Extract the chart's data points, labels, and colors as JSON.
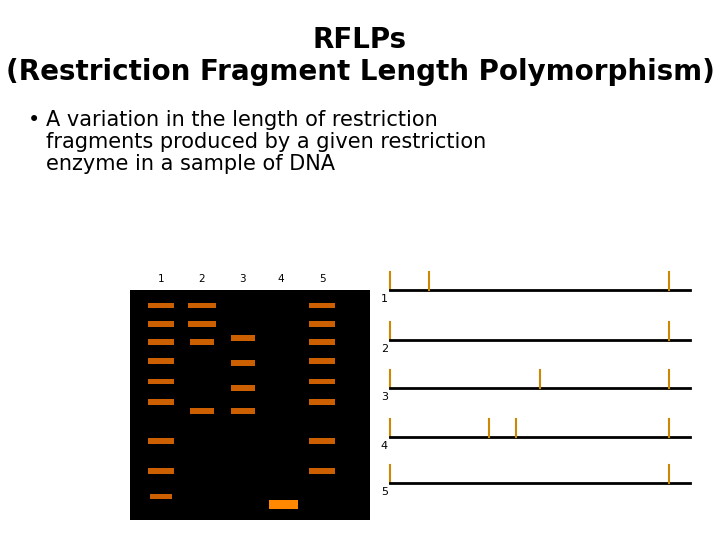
{
  "background_color": "#ffffff",
  "title_line1": "RFLPs",
  "title_line2": "(Restriction Fragment Length Polymorphism)",
  "title_fontsize": 20,
  "title_fontweight": "bold",
  "bullet_text_lines": [
    "A variation in the length of restriction",
    "fragments produced by a given restriction",
    "enzyme in a sample of DNA"
  ],
  "bullet_fontsize": 15,
  "diagram_line_color": "#000000",
  "tick_color": "#cc8800",
  "diagram_labels": [
    "1",
    "2",
    "3",
    "4",
    "5"
  ],
  "fragment_ticks_frac": [
    [
      0.13,
      0.93
    ],
    [
      0.93
    ],
    [
      0.5,
      0.93
    ],
    [
      0.33,
      0.42,
      0.93
    ],
    [
      0.93
    ]
  ],
  "band_color": "#cc6000",
  "band_color2": "#ff8800"
}
